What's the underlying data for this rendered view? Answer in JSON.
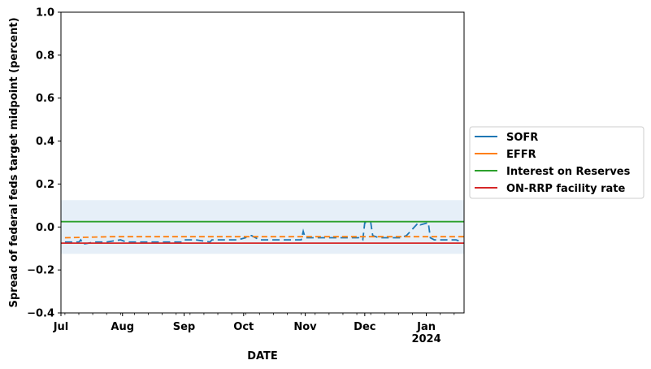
{
  "chart_data": {
    "type": "line",
    "xlabel": "DATE",
    "ylabel": "Spread of federal feds target midpoint (percent)",
    "ylim": [
      -0.4,
      1.0
    ],
    "xlim": [
      "2023-07-01",
      "2024-01-20"
    ],
    "y_ticks": [
      "−0.4",
      "−0.2",
      "0.0",
      "0.2",
      "0.4",
      "0.6",
      "0.8",
      "1.0"
    ],
    "x_ticks": [
      {
        "date": "2023-07-01",
        "label": "Jul",
        "sublabel": ""
      },
      {
        "date": "2023-08-01",
        "label": "Aug",
        "sublabel": ""
      },
      {
        "date": "2023-09-01",
        "label": "Sep",
        "sublabel": ""
      },
      {
        "date": "2023-10-01",
        "label": "Oct",
        "sublabel": ""
      },
      {
        "date": "2023-11-01",
        "label": "Nov",
        "sublabel": ""
      },
      {
        "date": "2023-12-01",
        "label": "Dec",
        "sublabel": ""
      },
      {
        "date": "2024-01-01",
        "label": "Jan",
        "sublabel": "2024"
      }
    ],
    "grid": false,
    "legend_position": "right",
    "band": {
      "y_low": -0.125,
      "y_high": 0.125,
      "color": "#e6eff8"
    },
    "series": [
      {
        "name": "SOFR",
        "color": "#1f77b4",
        "style": "dashed-gaps",
        "points": [
          [
            "2023-07-03",
            -0.07
          ],
          [
            "2023-07-06",
            -0.07
          ],
          [
            "2023-07-10",
            -0.07
          ],
          [
            "2023-07-11",
            -0.06
          ],
          [
            "2023-07-12",
            -0.08
          ],
          [
            "2023-07-18",
            -0.07
          ],
          [
            "2023-07-24",
            -0.07
          ],
          [
            "2023-07-31",
            -0.06
          ],
          [
            "2023-08-03",
            -0.07
          ],
          [
            "2023-08-10",
            -0.07
          ],
          [
            "2023-08-17",
            -0.07
          ],
          [
            "2023-08-24",
            -0.07
          ],
          [
            "2023-08-31",
            -0.07
          ],
          [
            "2023-09-01",
            -0.06
          ],
          [
            "2023-09-07",
            -0.06
          ],
          [
            "2023-09-14",
            -0.07
          ],
          [
            "2023-09-15",
            -0.06
          ],
          [
            "2023-09-21",
            -0.06
          ],
          [
            "2023-09-28",
            -0.06
          ],
          [
            "2023-10-02",
            -0.05
          ],
          [
            "2023-10-03",
            -0.04
          ],
          [
            "2023-10-05",
            -0.04
          ],
          [
            "2023-10-09",
            -0.06
          ],
          [
            "2023-10-16",
            -0.06
          ],
          [
            "2023-10-23",
            -0.06
          ],
          [
            "2023-10-30",
            -0.06
          ],
          [
            "2023-10-31",
            -0.02
          ],
          [
            "2023-11-01",
            -0.05
          ],
          [
            "2023-11-07",
            -0.05
          ],
          [
            "2023-11-14",
            -0.05
          ],
          [
            "2023-11-21",
            -0.05
          ],
          [
            "2023-11-28",
            -0.05
          ],
          [
            "2023-11-30",
            -0.06
          ],
          [
            "2023-12-01",
            0.02
          ],
          [
            "2023-12-04",
            0.02
          ],
          [
            "2023-12-05",
            -0.04
          ],
          [
            "2023-12-08",
            -0.05
          ],
          [
            "2023-12-12",
            -0.05
          ],
          [
            "2023-12-19",
            -0.05
          ],
          [
            "2023-12-22",
            -0.04
          ],
          [
            "2023-12-27",
            0.01
          ],
          [
            "2023-12-28",
            0.02
          ],
          [
            "2023-12-29",
            0.01
          ],
          [
            "2024-01-02",
            0.02
          ],
          [
            "2024-01-03",
            -0.05
          ],
          [
            "2024-01-05",
            -0.06
          ],
          [
            "2024-01-10",
            -0.06
          ],
          [
            "2024-01-16",
            -0.06
          ],
          [
            "2024-01-19",
            -0.07
          ]
        ]
      },
      {
        "name": "EFFR",
        "color": "#ff7f0e",
        "style": "dashed",
        "points": [
          [
            "2023-07-03",
            -0.05
          ],
          [
            "2023-07-27",
            -0.045
          ],
          [
            "2024-01-20",
            -0.045
          ]
        ]
      },
      {
        "name": "Interest on Reserves",
        "color": "#2ca02c",
        "style": "solid",
        "points": [
          [
            "2023-07-01",
            0.025
          ],
          [
            "2024-01-20",
            0.025
          ]
        ]
      },
      {
        "name": "ON-RRP facility rate",
        "color": "#d62728",
        "style": "solid",
        "points": [
          [
            "2023-07-01",
            -0.075
          ],
          [
            "2024-01-20",
            -0.075
          ]
        ]
      }
    ]
  }
}
